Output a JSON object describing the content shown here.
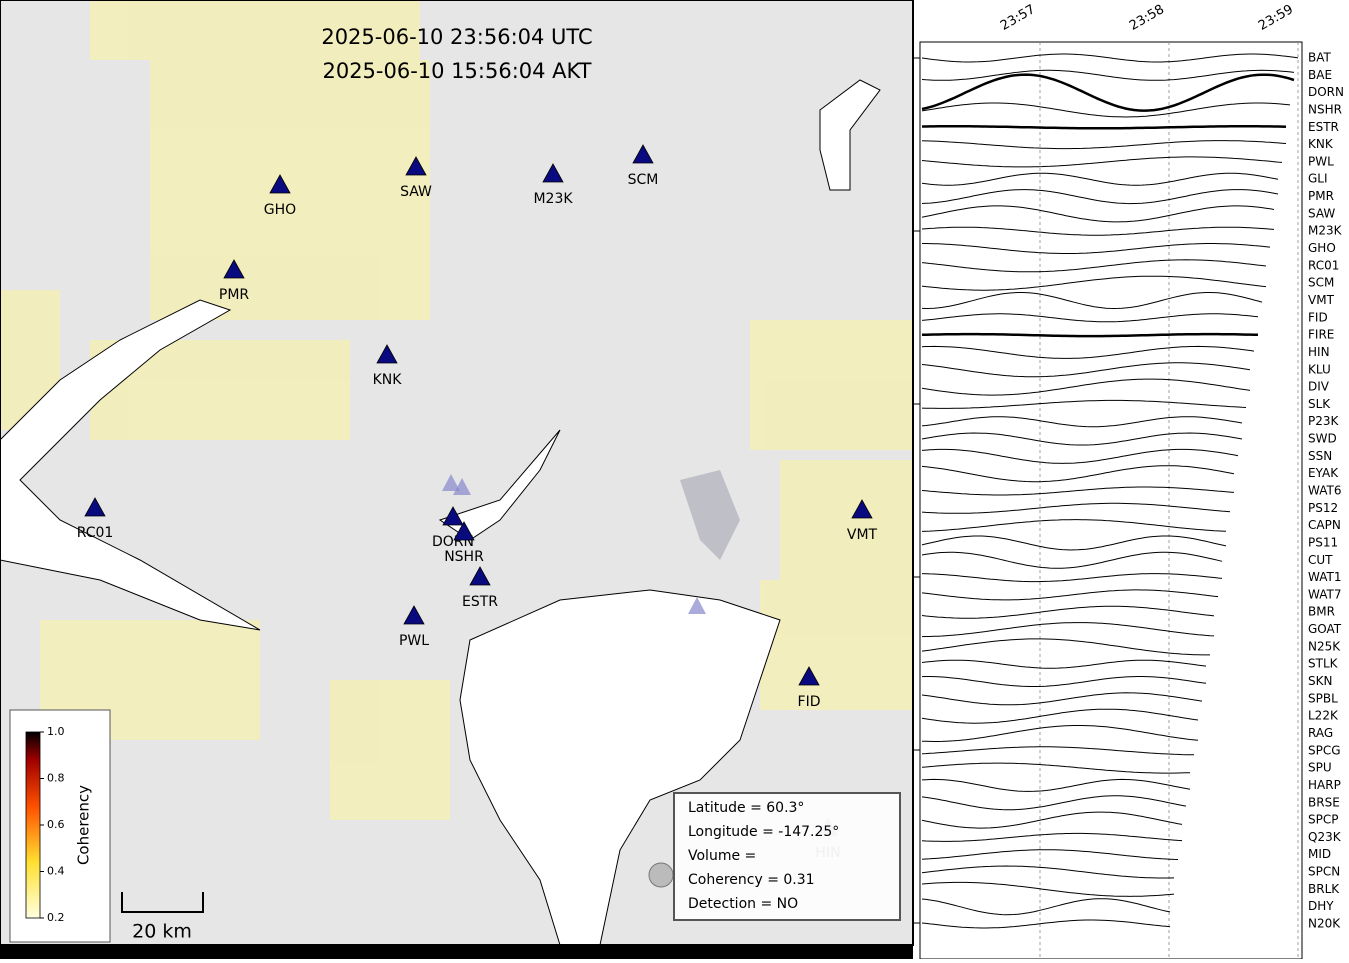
{
  "map": {
    "times": [
      "2025-06-10 23:56:04 UTC",
      "2025-06-10 15:56:04 AKT"
    ],
    "stations": [
      "GHO",
      "SAW",
      "M23K",
      "SCM",
      "PMR",
      "KNK",
      "RC01",
      "DORN",
      "NSHR",
      "ESTR",
      "PWL",
      "VMT",
      "FID",
      "HIN"
    ],
    "scale": "20 km",
    "colorbar": {
      "label": "Coherency",
      "ticks": [
        0.2,
        0.4,
        0.6,
        0.8,
        {
          "value": 1.0,
          "label": "1.0"
        }
      ]
    },
    "info": [
      "Latitude = 60.3°",
      "Longitude = -147.25°",
      "Volume =",
      "Coherency = 0.31",
      "Detection = NO"
    ]
  },
  "traces": {
    "time_ticks": [
      "23:57",
      "23:58",
      "23:59"
    ],
    "stations": [
      "BAT",
      "BAE",
      "DORN",
      "NSHR",
      "ESTR",
      "KNK",
      "PWL",
      "GLI",
      "PMR",
      "SAW",
      "M23K",
      "GHO",
      "RC01",
      "SCM",
      "VMT",
      "FID",
      "FIRE",
      "HIN",
      "KLU",
      "DIV",
      "SLK",
      "P23K",
      "SWD",
      "SSN",
      "EYAK",
      "WAT6",
      "PS12",
      "CAPN",
      "PS11",
      "CUT",
      "WAT1",
      "WAT7",
      "BMR",
      "GOAT",
      "N25K",
      "STLK",
      "SKN",
      "SPBL",
      "L22K",
      "RAG",
      "SPCG",
      "SPU",
      "HARP",
      "BRSE",
      "SPCP",
      "Q23K",
      "MID",
      "SPCN",
      "BRLK",
      "DHY",
      "N20K"
    ]
  }
}
